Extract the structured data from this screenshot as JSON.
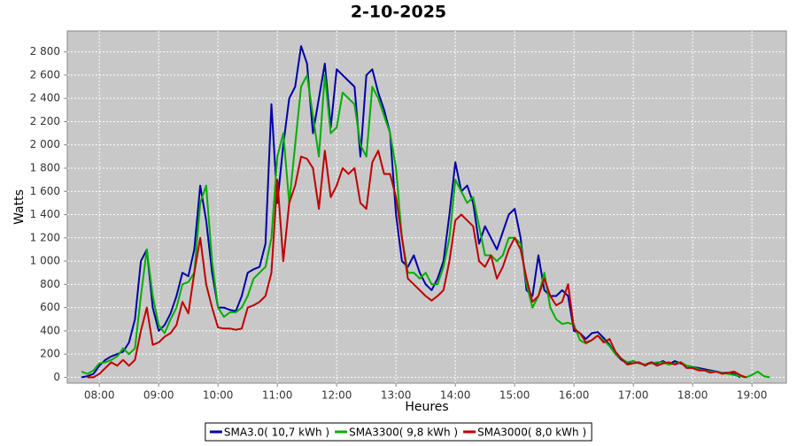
{
  "chart_data": {
    "type": "line",
    "title": "2-10-2025",
    "x_label": "Heures",
    "y_label": "Watts",
    "x": [
      7.7,
      7.8,
      7.9,
      8.0,
      8.1,
      8.2,
      8.3,
      8.4,
      8.5,
      8.6,
      8.7,
      8.8,
      8.9,
      9.0,
      9.1,
      9.2,
      9.3,
      9.4,
      9.5,
      9.6,
      9.7,
      9.8,
      9.9,
      10.0,
      10.1,
      10.2,
      10.3,
      10.4,
      10.5,
      10.6,
      10.7,
      10.8,
      10.9,
      11.0,
      11.1,
      11.2,
      11.3,
      11.4,
      11.5,
      11.6,
      11.7,
      11.8,
      11.9,
      12.0,
      12.1,
      12.2,
      12.3,
      12.4,
      12.5,
      12.6,
      12.7,
      12.8,
      12.9,
      13.0,
      13.1,
      13.2,
      13.3,
      13.4,
      13.5,
      13.6,
      13.7,
      13.8,
      13.9,
      14.0,
      14.1,
      14.2,
      14.3,
      14.4,
      14.5,
      14.6,
      14.7,
      14.8,
      14.9,
      15.0,
      15.1,
      15.2,
      15.3,
      15.4,
      15.5,
      15.6,
      15.7,
      15.8,
      15.9,
      16.0,
      16.1,
      16.2,
      16.3,
      16.4,
      16.5,
      16.6,
      16.7,
      16.8,
      16.9,
      17.0,
      17.1,
      17.2,
      17.3,
      17.4,
      17.5,
      17.6,
      17.7,
      17.8,
      17.9,
      18.0,
      18.1,
      18.2,
      18.3,
      18.4,
      18.5,
      18.6,
      18.7,
      18.8,
      18.9,
      19.0,
      19.1,
      19.2,
      19.3
    ],
    "series": [
      {
        "name": "SMA3.0( 10,7 kWh )",
        "color": "#0000a8",
        "values": [
          0,
          10,
          30,
          100,
          150,
          180,
          200,
          220,
          300,
          500,
          1000,
          1100,
          600,
          400,
          450,
          550,
          700,
          900,
          870,
          1100,
          1650,
          1350,
          900,
          600,
          600,
          580,
          570,
          700,
          900,
          930,
          950,
          1150,
          2350,
          1500,
          2000,
          2400,
          2500,
          2850,
          2700,
          2100,
          2400,
          2700,
          2150,
          2650,
          2600,
          2550,
          2500,
          1900,
          2600,
          2650,
          2450,
          2300,
          2100,
          1400,
          1000,
          950,
          1050,
          900,
          800,
          750,
          850,
          1000,
          1400,
          1850,
          1600,
          1650,
          1500,
          1150,
          1300,
          1200,
          1100,
          1250,
          1400,
          1450,
          1200,
          750,
          700,
          1050,
          750,
          700,
          700,
          750,
          700,
          400,
          380,
          330,
          380,
          390,
          340,
          280,
          200,
          150,
          120,
          140,
          120,
          110,
          130,
          120,
          140,
          110,
          140,
          120,
          100,
          90,
          80,
          70,
          60,
          50,
          40,
          40,
          30,
          0,
          null,
          null,
          null,
          null,
          null
        ]
      },
      {
        "name": "SMA3300( 9,8 kWh )",
        "color": "#00b000",
        "values": [
          50,
          30,
          60,
          120,
          130,
          150,
          180,
          250,
          200,
          250,
          700,
          1100,
          700,
          450,
          380,
          500,
          600,
          800,
          820,
          900,
          1500,
          1650,
          1000,
          600,
          520,
          560,
          560,
          600,
          700,
          850,
          900,
          950,
          1200,
          1900,
          2100,
          1500,
          2000,
          2500,
          2600,
          2250,
          1900,
          2600,
          2100,
          2150,
          2450,
          2400,
          2350,
          2000,
          1900,
          2500,
          2400,
          2250,
          2100,
          1800,
          1200,
          900,
          900,
          850,
          900,
          800,
          800,
          950,
          1200,
          1700,
          1600,
          1500,
          1550,
          1300,
          1050,
          1050,
          1000,
          1050,
          1200,
          1200,
          1150,
          800,
          600,
          700,
          900,
          600,
          500,
          460,
          470,
          450,
          320,
          290,
          320,
          360,
          320,
          270,
          200,
          160,
          130,
          140,
          120,
          110,
          120,
          130,
          130,
          110,
          120,
          130,
          100,
          90,
          70,
          60,
          50,
          50,
          40,
          30,
          20,
          10,
          0,
          20,
          50,
          10,
          0
        ]
      },
      {
        "name": "SMA3000( 8,0 kWh )",
        "color": "#c00000",
        "values": [
          null,
          0,
          0,
          30,
          80,
          130,
          100,
          150,
          100,
          150,
          400,
          600,
          280,
          300,
          350,
          380,
          450,
          650,
          550,
          900,
          1200,
          800,
          600,
          430,
          420,
          420,
          410,
          420,
          600,
          620,
          650,
          700,
          900,
          1700,
          1000,
          1500,
          1650,
          1900,
          1880,
          1800,
          1450,
          1950,
          1550,
          1650,
          1800,
          1750,
          1800,
          1500,
          1450,
          1850,
          1950,
          1750,
          1750,
          1550,
          1200,
          850,
          800,
          750,
          700,
          660,
          700,
          750,
          1000,
          1350,
          1400,
          1350,
          1300,
          1000,
          950,
          1050,
          850,
          950,
          1100,
          1200,
          1100,
          850,
          650,
          700,
          850,
          700,
          620,
          650,
          800,
          420,
          380,
          300,
          320,
          360,
          300,
          330,
          220,
          160,
          110,
          120,
          130,
          100,
          130,
          100,
          120,
          130,
          110,
          130,
          80,
          80,
          60,
          60,
          40,
          50,
          30,
          40,
          50,
          20,
          0,
          null,
          null,
          null,
          null
        ]
      }
    ],
    "xlim": [
      7.46,
      19.58
    ],
    "ylim": [
      -50,
      2980
    ],
    "xticks": [
      {
        "value": 8,
        "label": "08:00"
      },
      {
        "value": 9,
        "label": "09:00"
      },
      {
        "value": 10,
        "label": "10:00"
      },
      {
        "value": 11,
        "label": "11:00"
      },
      {
        "value": 12,
        "label": "12:00"
      },
      {
        "value": 13,
        "label": "13:00"
      },
      {
        "value": 14,
        "label": "14:00"
      },
      {
        "value": 15,
        "label": "15:00"
      },
      {
        "value": 16,
        "label": "16:00"
      },
      {
        "value": 17,
        "label": "17:00"
      },
      {
        "value": 18,
        "label": "18:00"
      },
      {
        "value": 19,
        "label": "19:00"
      }
    ],
    "yticks": [
      0,
      200,
      400,
      600,
      800,
      {
        "value": 1000,
        "label": "1 000"
      },
      {
        "value": 1200,
        "label": "1 200"
      },
      {
        "value": 1400,
        "label": "1 400"
      },
      {
        "value": 1600,
        "label": "1 600"
      },
      {
        "value": 1800,
        "label": "1 800"
      },
      {
        "value": 2000,
        "label": "2 000"
      },
      {
        "value": 2200,
        "label": "2 200"
      },
      {
        "value": 2400,
        "label": "2 400"
      },
      {
        "value": 2600,
        "label": "2 600"
      },
      {
        "value": 2800,
        "label": "2 800"
      }
    ],
    "grid": true,
    "legend": "bottom"
  }
}
